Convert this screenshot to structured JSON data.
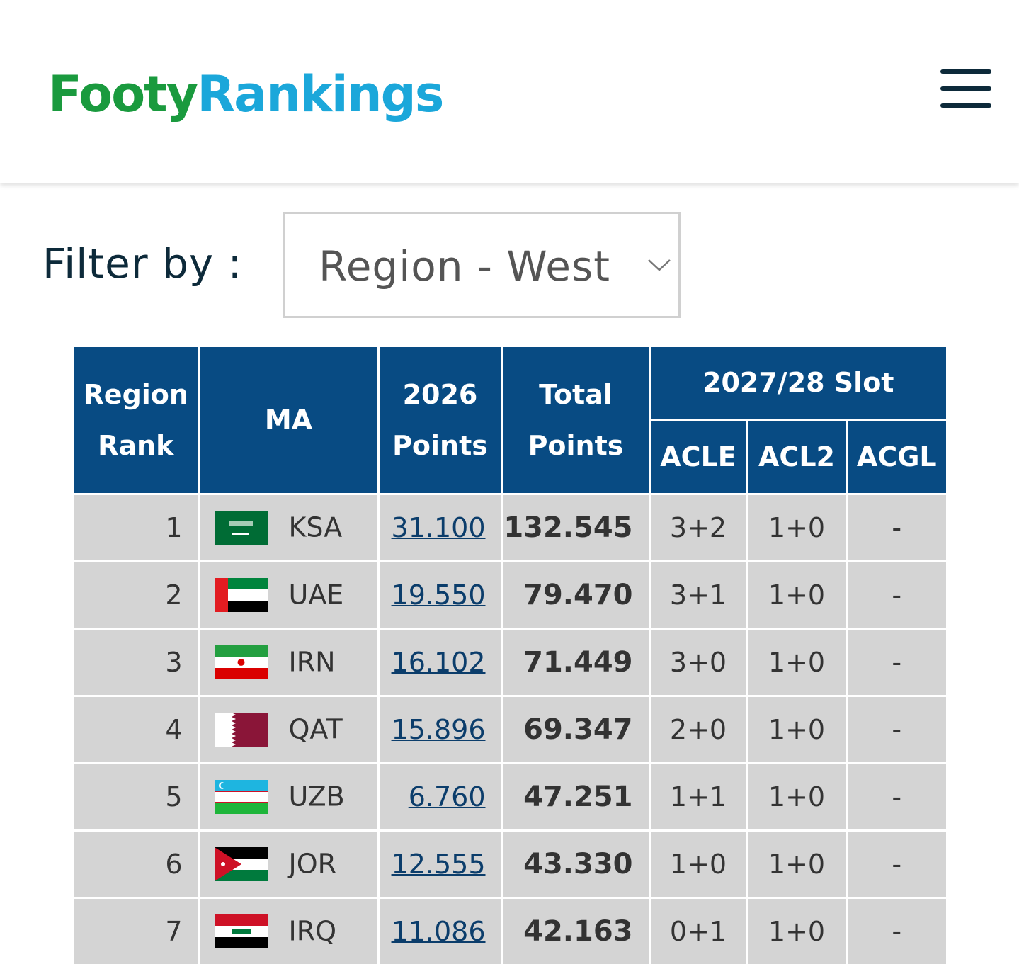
{
  "header": {
    "logo_left": "Footy",
    "logo_right": "Rankings"
  },
  "filter": {
    "label": "Filter by :",
    "value": "Region - West"
  },
  "table": {
    "headers": [
      "Region Rank",
      "MA",
      "2026 Points",
      "Total Points"
    ],
    "slot_header": "2027/28 Slot",
    "slot_columns": [
      "ACLE",
      "ACL2",
      "ACGL"
    ],
    "rows": [
      [
        1,
        "KSA",
        "31.100",
        "132.545",
        "3+2",
        "1+0",
        "-"
      ],
      [
        2,
        "UAE",
        "19.550",
        "79.470",
        "3+1",
        "1+0",
        "-"
      ],
      [
        3,
        "IRN",
        "16.102",
        "71.449",
        "3+0",
        "1+0",
        "-"
      ],
      [
        4,
        "QAT",
        "15.896",
        "69.347",
        "2+0",
        "1+0",
        "-"
      ],
      [
        5,
        "UZB",
        "6.760",
        "47.251",
        "1+1",
        "1+0",
        "-"
      ],
      [
        6,
        "JOR",
        "12.555",
        "43.330",
        "1+0",
        "1+0",
        "-"
      ],
      [
        7,
        "IRQ",
        "11.086",
        "42.163",
        "0+1",
        "1+0",
        "-"
      ]
    ]
  }
}
